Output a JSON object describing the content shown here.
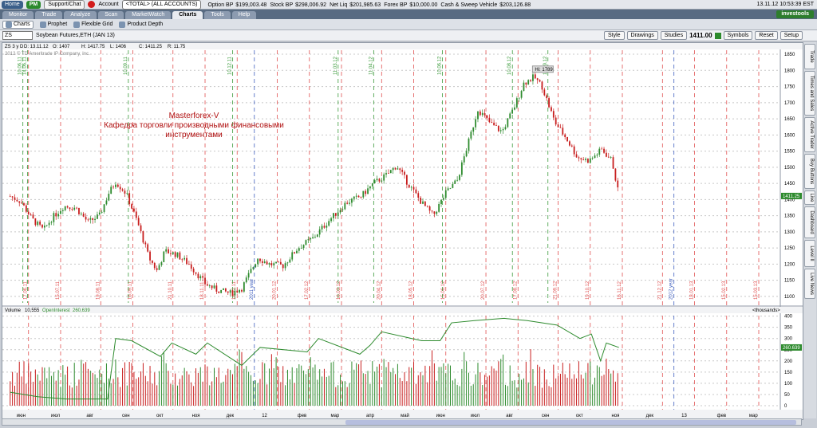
{
  "topbar": {
    "home": "Home",
    "pm": "PM",
    "support": "Support/Chat",
    "account_label": "Account",
    "account_value": "<TOTAL> (ALL ACCOUNTS)",
    "stats": [
      {
        "label": "Option BP",
        "value": "$199,003.48"
      },
      {
        "label": "Stock BP",
        "value": "$298,006.92"
      },
      {
        "label": "Net Liq",
        "value": "$201,985.63"
      },
      {
        "label": "Forex BP",
        "value": "$10,000.00"
      },
      {
        "label": "Cash & Sweep Vehicle",
        "value": "$203,126.88"
      }
    ],
    "clock": "13.11.12 10:53:39 EST"
  },
  "nav": {
    "tabs": [
      "Monitor",
      "Trade",
      "Analyze",
      "Scan",
      "MarketWatch",
      "Charts",
      "Tools",
      "Help"
    ],
    "active": "Charts",
    "brand": "investools"
  },
  "subnav": {
    "items": [
      "Charts",
      "Prophet",
      "Flexible Grid",
      "Product Depth"
    ],
    "active": "Charts"
  },
  "symbol_bar": {
    "symbol": "ZS",
    "description": "Soybean Futures,ETH (JAN 13)",
    "buttons": [
      "Style",
      "Drawings",
      "Studies"
    ],
    "price": "1411.00",
    "right_buttons": [
      "Symbols",
      "Reset",
      "Setup"
    ]
  },
  "chart_header": {
    "period": "ZS 3 y D",
    "date": "D: 13.11.12",
    "open": "O: 1407",
    "high": "H: 1417.75",
    "low": "L: 1406",
    "close": "C: 1411.25",
    "range": "R: 11.75",
    "copyright": "2012 © TD Ameritrade IP Company, Inc."
  },
  "annotation": {
    "line1": "Masterforex-V",
    "line2": "Кафедра торговли производными финансовыми",
    "line3": "инструментами"
  },
  "volume_header": {
    "label": "Volume",
    "volume": "10,555",
    "oi_label": "OpenInterest",
    "oi": "260,639",
    "units": "<thousands>"
  },
  "price_labels": {
    "high_marker": "Hi: 1789",
    "last": "1411.25",
    "oi_last": "260.639"
  },
  "side_tabs": [
    "Trade",
    "Times and Sales",
    "Active Trader",
    "Buy Buttons",
    "Live",
    "Dashboard",
    "Level II",
    "Live News"
  ],
  "colors": {
    "up": "#2e8b2e",
    "down": "#c81e1e",
    "grid": "#c8c8c8",
    "vline_red": "#e05050",
    "vline_green": "#3a9a3a",
    "vline_blue": "#4060c0",
    "annotation": "#b01010"
  },
  "chart_data": {
    "type": "candlestick",
    "price_axis": {
      "ticks": [
        1850,
        1800,
        1750,
        1700,
        1650,
        1600,
        1550,
        1500,
        1450,
        1400,
        1350,
        1300,
        1250,
        1200,
        1150,
        1100
      ],
      "ylim": [
        1080,
        1860
      ]
    },
    "volume_axis": {
      "ticks": [
        400,
        350,
        300,
        250,
        200,
        150,
        100,
        50,
        0
      ],
      "ylim": [
        0,
        420
      ]
    },
    "month_labels": [
      "июн",
      "июл",
      "авг",
      "сен",
      "окт",
      "ноя",
      "дек",
      "12",
      "фев",
      "мар",
      "апр",
      "май",
      "июн",
      "июл",
      "авг",
      "сен",
      "окт",
      "ноя",
      "дек",
      "13",
      "фев",
      "мар"
    ],
    "vertical_date_labels": [
      "17.06.11",
      "15.07.11",
      "19.08.11",
      "16.09.11",
      "21.10.11",
      "18.11.11",
      "16.12.11",
      "2011 year",
      "20.01.12",
      "17.02.12",
      "16.03.12",
      "20.04.12",
      "18.05.12",
      "15.06.12",
      "20.07.12",
      "17.08.12",
      "21.09.12",
      "19.10.12",
      "16.11.12",
      "21.12.12",
      "2012 year",
      "18.01.13",
      "15.02.13",
      "15.03.13"
    ],
    "top_labels": [
      "14.06.11",
      "10.06.11",
      "10.09.11",
      "10.12.11",
      "11.03.12",
      "11.04.12",
      "10.06.12",
      "10.08.12",
      "10.09.12"
    ],
    "price_path": [
      [
        "2011-06-01",
        1410
      ],
      [
        "2011-06-10",
        1395
      ],
      [
        "2011-06-20",
        1340
      ],
      [
        "2011-06-30",
        1305
      ],
      [
        "2011-07-08",
        1345
      ],
      [
        "2011-07-18",
        1380
      ],
      [
        "2011-07-28",
        1375
      ],
      [
        "2011-08-08",
        1330
      ],
      [
        "2011-08-18",
        1350
      ],
      [
        "2011-08-26",
        1420
      ],
      [
        "2011-09-01",
        1455
      ],
      [
        "2011-09-10",
        1420
      ],
      [
        "2011-09-20",
        1330
      ],
      [
        "2011-09-30",
        1220
      ],
      [
        "2011-10-07",
        1180
      ],
      [
        "2011-10-14",
        1240
      ],
      [
        "2011-10-24",
        1230
      ],
      [
        "2011-11-04",
        1200
      ],
      [
        "2011-11-18",
        1140
      ],
      [
        "2011-11-28",
        1120
      ],
      [
        "2011-12-10",
        1110
      ],
      [
        "2011-12-20",
        1125
      ],
      [
        "2012-01-03",
        1220
      ],
      [
        "2012-01-13",
        1200
      ],
      [
        "2012-01-25",
        1195
      ],
      [
        "2012-02-07",
        1250
      ],
      [
        "2012-02-20",
        1280
      ],
      [
        "2012-03-05",
        1335
      ],
      [
        "2012-03-20",
        1390
      ],
      [
        "2012-04-02",
        1410
      ],
      [
        "2012-04-13",
        1450
      ],
      [
        "2012-04-24",
        1475
      ],
      [
        "2012-05-03",
        1505
      ],
      [
        "2012-05-13",
        1450
      ],
      [
        "2012-05-25",
        1390
      ],
      [
        "2012-06-04",
        1350
      ],
      [
        "2012-06-15",
        1420
      ],
      [
        "2012-06-25",
        1460
      ],
      [
        "2012-07-05",
        1580
      ],
      [
        "2012-07-13",
        1680
      ],
      [
        "2012-07-24",
        1635
      ],
      [
        "2012-08-03",
        1610
      ],
      [
        "2012-08-13",
        1680
      ],
      [
        "2012-08-22",
        1760
      ],
      [
        "2012-08-31",
        1780
      ],
      [
        "2012-09-07",
        1750
      ],
      [
        "2012-09-18",
        1640
      ],
      [
        "2012-09-28",
        1590
      ],
      [
        "2012-10-08",
        1530
      ],
      [
        "2012-10-18",
        1520
      ],
      [
        "2012-10-29",
        1555
      ],
      [
        "2012-11-07",
        1520
      ],
      [
        "2012-11-13",
        1411
      ]
    ],
    "open_interest_path": [
      [
        "2011-06-01",
        60
      ],
      [
        "2011-06-25",
        40
      ],
      [
        "2011-07-20",
        30
      ],
      [
        "2011-08-25",
        30
      ],
      [
        "2011-09-01",
        300
      ],
      [
        "2011-09-15",
        290
      ],
      [
        "2011-10-10",
        220
      ],
      [
        "2011-10-20",
        280
      ],
      [
        "2011-11-10",
        230
      ],
      [
        "2011-11-20",
        280
      ],
      [
        "2011-12-20",
        180
      ],
      [
        "2012-01-05",
        260
      ],
      [
        "2012-02-15",
        240
      ],
      [
        "2012-02-25",
        300
      ],
      [
        "2012-04-01",
        230
      ],
      [
        "2012-04-10",
        270
      ],
      [
        "2012-04-20",
        330
      ],
      [
        "2012-05-25",
        290
      ],
      [
        "2012-06-10",
        290
      ],
      [
        "2012-06-20",
        370
      ],
      [
        "2012-07-10",
        380
      ],
      [
        "2012-08-05",
        390
      ],
      [
        "2012-08-25",
        380
      ],
      [
        "2012-09-20",
        360
      ],
      [
        "2012-10-10",
        300
      ],
      [
        "2012-10-20",
        320
      ],
      [
        "2012-10-28",
        200
      ],
      [
        "2012-11-02",
        280
      ],
      [
        "2012-11-13",
        260
      ]
    ]
  }
}
